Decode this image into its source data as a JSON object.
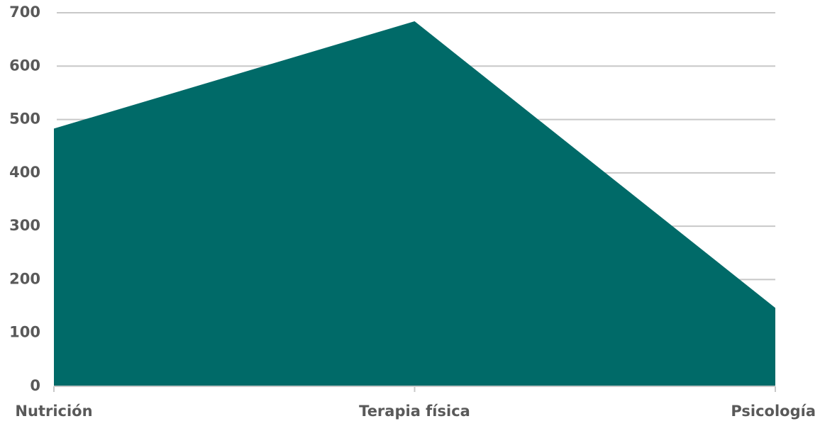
{
  "chart_data": {
    "type": "area",
    "categories": [
      "Nutrición",
      "Terapia física",
      "Psicología"
    ],
    "values": [
      483,
      684,
      147
    ],
    "color": "#006a68",
    "ylim": [
      0,
      700
    ],
    "yticks": [
      0,
      100,
      200,
      300,
      400,
      500,
      600,
      700
    ],
    "grid": true
  }
}
